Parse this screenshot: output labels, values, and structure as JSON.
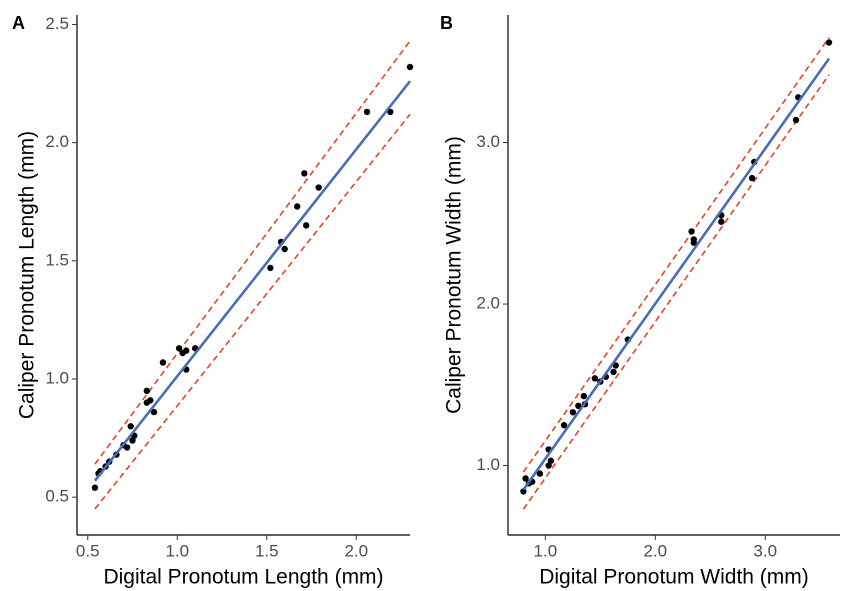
{
  "chart_data": [
    {
      "type": "scatter",
      "panel_label": "A",
      "x_label": "Digital Pronotum Length (mm)",
      "y_label": "Caliper Pronotum Length (mm)",
      "xlim": [
        0.44,
        2.3
      ],
      "ylim": [
        0.34,
        2.54
      ],
      "xticks": [
        0.5,
        {
          "value": 1,
          "label": "1.0"
        },
        1.5,
        {
          "value": 2,
          "label": "2.0"
        }
      ],
      "yticks": [
        0.5,
        {
          "value": 1,
          "label": "1.0"
        },
        1.5,
        {
          "value": 2,
          "label": "2.0"
        },
        2.5
      ],
      "point_color": "#000000",
      "x": [
        0.54,
        0.56,
        0.57,
        0.6,
        0.62,
        0.66,
        0.7,
        0.72,
        0.74,
        0.75,
        0.76,
        0.83,
        0.83,
        0.85,
        0.87,
        0.92,
        1.01,
        1.03,
        1.05,
        1.05,
        1.1,
        1.52,
        1.58,
        1.6,
        1.67,
        1.71,
        1.72,
        1.79,
        2.06,
        2.19,
        2.3
      ],
      "y": [
        0.54,
        0.6,
        0.61,
        0.63,
        0.65,
        0.68,
        0.72,
        0.71,
        0.8,
        0.74,
        0.76,
        0.95,
        0.9,
        0.91,
        0.86,
        1.07,
        1.13,
        1.11,
        1.12,
        1.04,
        1.13,
        1.47,
        1.58,
        1.55,
        1.73,
        1.87,
        1.65,
        1.81,
        2.13,
        2.13,
        2.32
      ],
      "fit_line": {
        "x": [
          0.54,
          2.3
        ],
        "y": [
          0.57,
          2.26
        ],
        "color": "#4a6bb5"
      },
      "upper_bound": {
        "x": [
          0.54,
          2.3
        ],
        "y": [
          0.64,
          2.43
        ],
        "color": "#e8432b"
      },
      "lower_bound": {
        "x": [
          0.54,
          2.3
        ],
        "y": [
          0.45,
          2.12
        ],
        "color": "#e8432b"
      }
    },
    {
      "type": "scatter",
      "panel_label": "B",
      "x_label": "Digital Pronotum Width (mm)",
      "y_label": "Caliper Pronotum Width (mm)",
      "xlim": [
        0.66,
        3.68
      ],
      "ylim": [
        0.57,
        3.79
      ],
      "xticks": [
        {
          "value": 1,
          "label": "1.0"
        },
        {
          "value": 2,
          "label": "2.0"
        },
        {
          "value": 3,
          "label": "3.0"
        }
      ],
      "yticks": [
        {
          "value": 1,
          "label": "1.0"
        },
        {
          "value": 2,
          "label": "2.0"
        },
        {
          "value": 3,
          "label": "3.0"
        }
      ],
      "point_color": "#000000",
      "x": [
        0.8,
        0.82,
        0.85,
        0.88,
        0.95,
        1.03,
        1.03,
        1.05,
        1.17,
        1.25,
        1.3,
        1.35,
        1.36,
        1.45,
        1.5,
        1.55,
        1.62,
        1.64,
        1.75,
        2.33,
        2.35,
        2.35,
        2.6,
        2.6,
        2.88,
        2.9,
        3.28,
        3.3,
        3.58
      ],
      "y": [
        0.84,
        0.92,
        0.89,
        0.9,
        0.95,
        1.0,
        1.1,
        1.03,
        1.25,
        1.33,
        1.37,
        1.43,
        1.38,
        1.54,
        1.52,
        1.55,
        1.58,
        1.62,
        1.78,
        2.45,
        2.4,
        2.38,
        2.51,
        2.55,
        2.78,
        2.88,
        3.14,
        3.28,
        3.62
      ],
      "fit_line": {
        "x": [
          0.8,
          3.58
        ],
        "y": [
          0.85,
          3.52
        ],
        "color": "#4a6bb5"
      },
      "upper_bound": {
        "x": [
          0.8,
          3.58
        ],
        "y": [
          0.96,
          3.65
        ],
        "color": "#e8432b"
      },
      "lower_bound": {
        "x": [
          0.8,
          3.58
        ],
        "y": [
          0.73,
          3.42
        ],
        "color": "#e8432b"
      }
    }
  ]
}
